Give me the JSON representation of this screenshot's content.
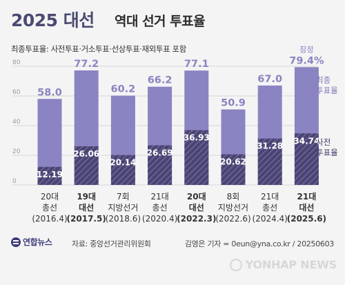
{
  "header": {
    "title_main": "2025 대선",
    "title_sub": "역대 선거 투표율"
  },
  "subtitle": "최종투표율: 사전투표·거소투표·선상투표·재외투표 포함",
  "colors": {
    "final": "#8a84c2",
    "early": "#4a4470",
    "early_hatch": "#6c66a0",
    "legend_final": "#7d77b8",
    "legend_early": "#3e3a66",
    "title": "#4a4a72",
    "axis_text": "#9a9a9a",
    "gridline": "#d6d6d6"
  },
  "chart_data": {
    "type": "bar",
    "title": "역대 선거 투표율",
    "xlabel": "",
    "ylabel": "",
    "ylim": [
      0,
      80
    ],
    "yticks": [
      0,
      20,
      40,
      60,
      80
    ],
    "grid": true,
    "categories": [
      {
        "line1": "20대",
        "line2": "총선",
        "line3": "(2016.4)",
        "bold": false
      },
      {
        "line1": "19대",
        "line2": "대선",
        "line3": "(2017.5)",
        "bold": true
      },
      {
        "line1": "7회",
        "line2": "지방선거",
        "line3": "(2018.6)",
        "bold": false
      },
      {
        "line1": "21대",
        "line2": "총선",
        "line3": "(2020.4)",
        "bold": false
      },
      {
        "line1": "20대",
        "line2": "대선",
        "line3": "(2022.3)",
        "bold": true
      },
      {
        "line1": "8회",
        "line2": "지방선거",
        "line3": "(2022.6)",
        "bold": false
      },
      {
        "line1": "21대",
        "line2": "총선",
        "line3": "(2024.4)",
        "bold": false
      },
      {
        "line1": "21대",
        "line2": "대선",
        "line3": "(2025.6)",
        "bold": true
      }
    ],
    "series": [
      {
        "name": "최종 투표율",
        "values": [
          58.0,
          77.2,
          60.2,
          66.2,
          77.1,
          50.9,
          67.0,
          79.4
        ]
      },
      {
        "name": "사전 투표율",
        "values": [
          12.19,
          26.06,
          20.14,
          26.69,
          36.93,
          20.62,
          31.28,
          34.74
        ]
      }
    ],
    "final_labels": [
      "58.0",
      "77.2",
      "60.2",
      "66.2",
      "77.1",
      "50.9",
      "67.0",
      "79.4%"
    ],
    "early_labels": [
      "12.19",
      "26.06",
      "20.14",
      "26.69",
      "36.93",
      "20.62",
      "31.28",
      "34.74"
    ],
    "annotations": {
      "provisional": "잠정"
    },
    "legend": {
      "placement": "right",
      "final_line1": "최종",
      "final_line2": "투표율",
      "early_line1": "사전",
      "early_line2": "투표율"
    }
  },
  "footer": {
    "logo": "연합뉴스",
    "source": "자료: 중앙선거관리위원회",
    "credit": "김영은 기자 = 0eun@yna.co.kr / 20250603",
    "watermark": "YONHAP NEWS"
  }
}
